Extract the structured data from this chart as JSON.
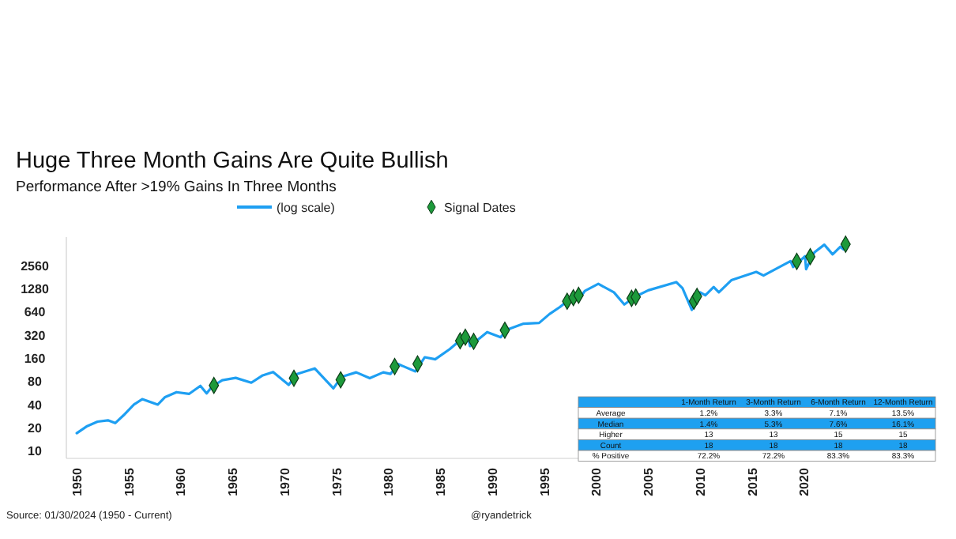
{
  "chart_data": [
    {
      "type": "line",
      "title": "Huge Three Month Gains Are Quite Bullish",
      "subtitle": "Performance After >19% Gains In Three Months",
      "annotations": [
        "Source: 01/30/2024 (1950 - Current)",
        "@ryandetrick"
      ],
      "log": true,
      "legend": "top",
      "grid": false,
      "xlim": [
        1949,
        2025.5
      ],
      "xticks": [
        1950,
        1955,
        1960,
        1965,
        1970,
        1975,
        1980,
        1985,
        1990,
        1995,
        2000,
        2005,
        2010,
        2015,
        2020
      ],
      "ylim": [
        8,
        6000
      ],
      "yticks": [
        10,
        20,
        40,
        80,
        160,
        320,
        640,
        1280,
        2560
      ],
      "series": [
        {
          "name": "(log scale)",
          "type": "line",
          "color": "#1e9ff2",
          "marker": "none",
          "x": [
            1950,
            1951,
            1952,
            1953,
            1953.7,
            1954.5,
            1955.5,
            1956.3,
            1957.8,
            1958.5,
            1959.6,
            1960.8,
            1961.9,
            1962.5,
            1963.0,
            1964,
            1965.3,
            1966.8,
            1967.9,
            1968.9,
            1970.4,
            1971.2,
            1972.9,
            1974.7,
            1975.5,
            1976.9,
            1978.2,
            1979.5,
            1980.2,
            1980.9,
            1982.6,
            1983.5,
            1984.5,
            1985.9,
            1987.6,
            1987.85,
            1989.5,
            1990.8,
            1991.5,
            1993,
            1994.5,
            1995.5,
            1996.5,
            1997.5,
            1998.6,
            1998.9,
            2000.2,
            2001.7,
            2002.7,
            2003.7,
            2005,
            2007.7,
            2008.3,
            2009.2,
            2010,
            2010.5,
            2011.3,
            2011.8,
            2013,
            2015.4,
            2016.1,
            2018.7,
            2018.95,
            2020.1,
            2020.2,
            2021,
            2021.95,
            2022.75,
            2023.5,
            2023.8,
            2024.08
          ],
          "values": [
            17,
            21,
            24,
            25,
            23,
            29,
            40,
            47,
            40,
            50,
            58,
            55,
            70,
            56,
            68,
            83,
            89,
            77,
            96,
            106,
            72,
            100,
            118,
            65,
            92,
            105,
            88,
            105,
            100,
            135,
            108,
            165,
            155,
            210,
            330,
            230,
            350,
            300,
            380,
            450,
            460,
            600,
            740,
            950,
            1050,
            1200,
            1480,
            1150,
            800,
            1000,
            1220,
            1560,
            1300,
            680,
            1150,
            1050,
            1350,
            1150,
            1650,
            2120,
            1900,
            2930,
            2450,
            3380,
            2300,
            3800,
            4780,
            3580,
            4500,
            4150,
            4900
          ]
        },
        {
          "name": "Signal Dates",
          "type": "scatter",
          "color": "#1d9a3b",
          "marker": "diamond",
          "x": [
            1963.2,
            1970.9,
            1975.4,
            1980.6,
            1982.8,
            1986.9,
            1987.4,
            1988.2,
            1991.2,
            1997.2,
            1997.8,
            1998.3,
            2003.4,
            2003.8,
            2009.4,
            2009.7,
            2019.3,
            2020.6,
            2024.0
          ],
          "values": [
            71,
            88,
            84,
            125,
            135,
            270,
            300,
            265,
            370,
            880,
            980,
            1050,
            960,
            1000,
            880,
            1020,
            2900,
            3350,
            4850
          ]
        }
      ]
    },
    {
      "type": "other",
      "categories": [
        "1-Month Return",
        "3-Month Return",
        "6-Month Return",
        "12-Month Return"
      ],
      "y_categories": [
        "Average",
        "Median",
        "Higher",
        "Count",
        "% Positive"
      ],
      "cell_labels": [
        [
          "1.2%",
          "3.3%",
          "7.1%",
          "13.5%"
        ],
        [
          "1.4%",
          "5.3%",
          "7.6%",
          "16.1%"
        ],
        [
          "13",
          "13",
          "15",
          "15"
        ],
        [
          "18",
          "18",
          "18",
          "18"
        ],
        [
          "72.2%",
          "72.2%",
          "83.3%",
          "83.3%"
        ]
      ]
    }
  ]
}
